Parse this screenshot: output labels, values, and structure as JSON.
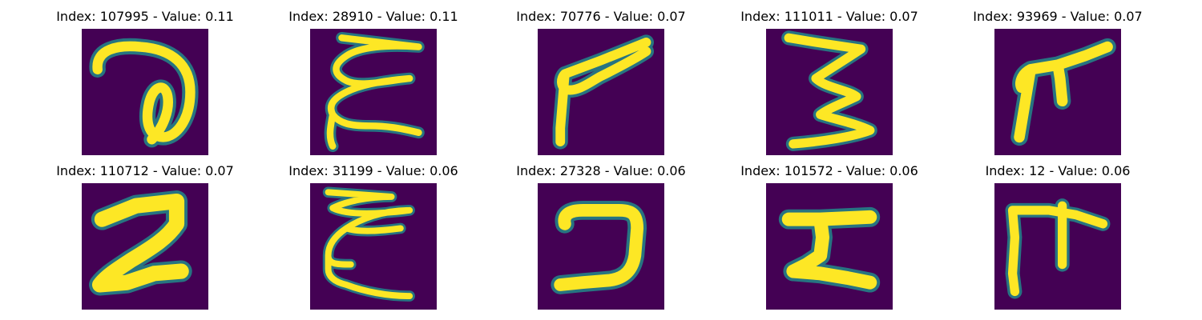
{
  "panels": [
    {
      "title": "Index: 107995 - Value: 0.11",
      "icon": "handwritten-glyph-loop-image"
    },
    {
      "title": "Index: 28910 - Value: 0.11",
      "icon": "handwritten-glyph-zigzag-e-image"
    },
    {
      "title": "Index: 70776 - Value: 0.07",
      "icon": "handwritten-glyph-arrow-image"
    },
    {
      "title": "Index: 111011 - Value: 0.07",
      "icon": "handwritten-glyph-three-image"
    },
    {
      "title": "Index: 93969 - Value: 0.07",
      "icon": "handwritten-glyph-branch-image"
    },
    {
      "title": "Index: 110712 - Value: 0.07",
      "icon": "handwritten-glyph-seven-image"
    },
    {
      "title": "Index: 31199 - Value: 0.06",
      "icon": "handwritten-glyph-zigzag-e-image"
    },
    {
      "title": "Index: 27328 - Value: 0.06",
      "icon": "handwritten-glyph-hook-image"
    },
    {
      "title": "Index: 101572 - Value: 0.06",
      "icon": "handwritten-glyph-z-image"
    },
    {
      "title": "Index: 12 - Value: 0.06",
      "icon": "handwritten-glyph-branch-image"
    }
  ],
  "colors": {
    "background": "#440154",
    "stroke": "#fde725",
    "edge": "#21918c"
  }
}
